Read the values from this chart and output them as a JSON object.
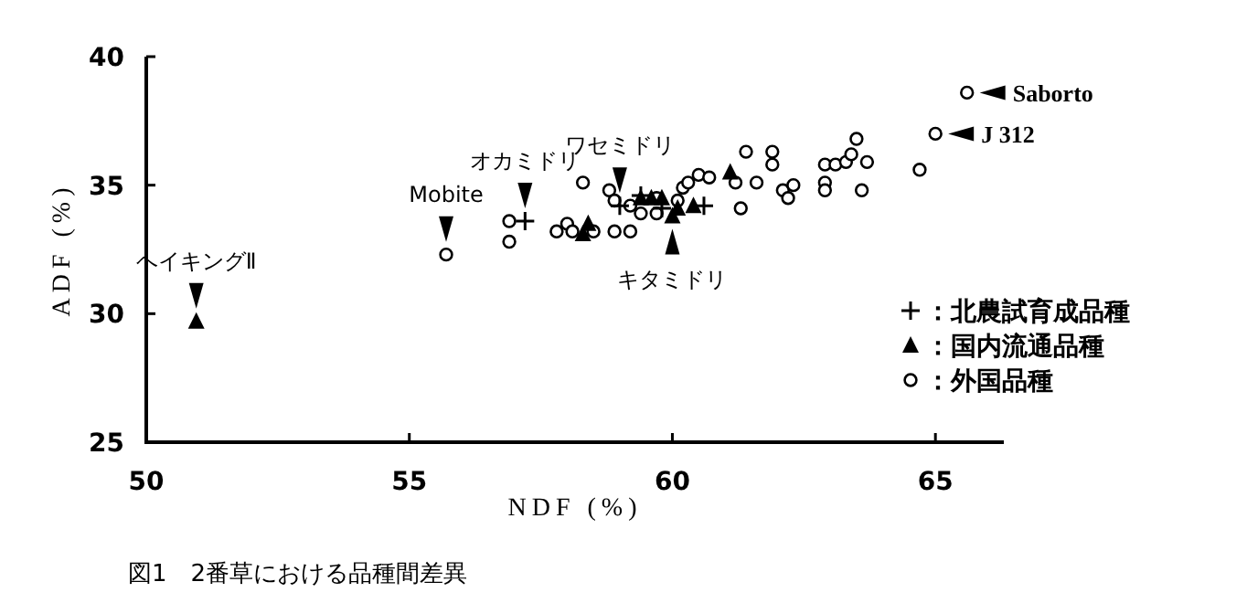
{
  "chart_data": {
    "type": "scatter",
    "xlabel": "NDF (%)",
    "ylabel": "ADF (%)",
    "xlim": [
      50,
      66.3
    ],
    "ylim": [
      25,
      40
    ],
    "xticks": [
      50,
      55,
      60,
      65
    ],
    "yticks": [
      25,
      30,
      35,
      40
    ],
    "grid": false,
    "legend": "bottom right",
    "series": [
      {
        "name": "：北農試育成品種",
        "color": "#000000",
        "marker": "cross",
        "x": [
          57.2,
          59.4,
          59.0,
          60.6,
          59.8
        ],
        "values": [
          33.6,
          34.6,
          34.2,
          34.2,
          34.1
        ]
      },
      {
        "name": "：国内流通品種",
        "color": "#000000",
        "marker": "triangle",
        "x": [
          50.95,
          58.3,
          58.4,
          59.4,
          59.6,
          59.8,
          60.1,
          60.0,
          60.4,
          61.1
        ],
        "values": [
          29.7,
          33.1,
          33.5,
          34.5,
          34.5,
          34.5,
          34.1,
          33.8,
          34.2,
          35.5
        ]
      },
      {
        "name": "：外国品種",
        "color": "#000000",
        "marker": "circle",
        "x": [
          55.7,
          56.9,
          56.9,
          58.3,
          58.0,
          57.8,
          58.1,
          58.8,
          58.9,
          58.9,
          59.2,
          59.4,
          59.7,
          59.2,
          60.1,
          60.2,
          60.5,
          60.3,
          60.7,
          61.3,
          61.2,
          61.4,
          61.9,
          61.9,
          61.6,
          62.1,
          62.3,
          62.2,
          62.9,
          62.9,
          63.1,
          63.3,
          63.4,
          63.5,
          63.7,
          63.6,
          62.9,
          64.7,
          65.0,
          65.6,
          59.7,
          58.5
        ],
        "values": [
          32.3,
          33.6,
          32.8,
          35.1,
          33.5,
          33.2,
          33.2,
          34.8,
          34.4,
          33.2,
          33.2,
          33.9,
          34.5,
          34.2,
          34.4,
          34.9,
          35.4,
          35.1,
          35.3,
          34.1,
          35.1,
          36.3,
          36.3,
          35.8,
          35.1,
          34.8,
          35.0,
          34.5,
          35.8,
          35.1,
          35.8,
          35.9,
          36.2,
          36.8,
          35.9,
          34.8,
          34.8,
          35.6,
          37.0,
          38.6,
          33.9,
          33.2
        ]
      }
    ],
    "annotations": [
      {
        "text": "ヘイキングⅡ",
        "x": 50.95,
        "y": 29.7
      },
      {
        "text": "Mobite",
        "x": 55.7,
        "y": 32.3
      },
      {
        "text": "オカミドリ",
        "x": 57.2,
        "y": 33.6
      },
      {
        "text": "ワセミドリ",
        "x": 59.0,
        "y": 34.2
      },
      {
        "text": "キタミドリ",
        "x": 60.0,
        "y": 33.8
      },
      {
        "text": "Saborto",
        "x": 65.6,
        "y": 38.6
      },
      {
        "text": "J 312",
        "x": 65.0,
        "y": 37.0
      },
      "図1　2番草における品種間差異"
    ]
  }
}
